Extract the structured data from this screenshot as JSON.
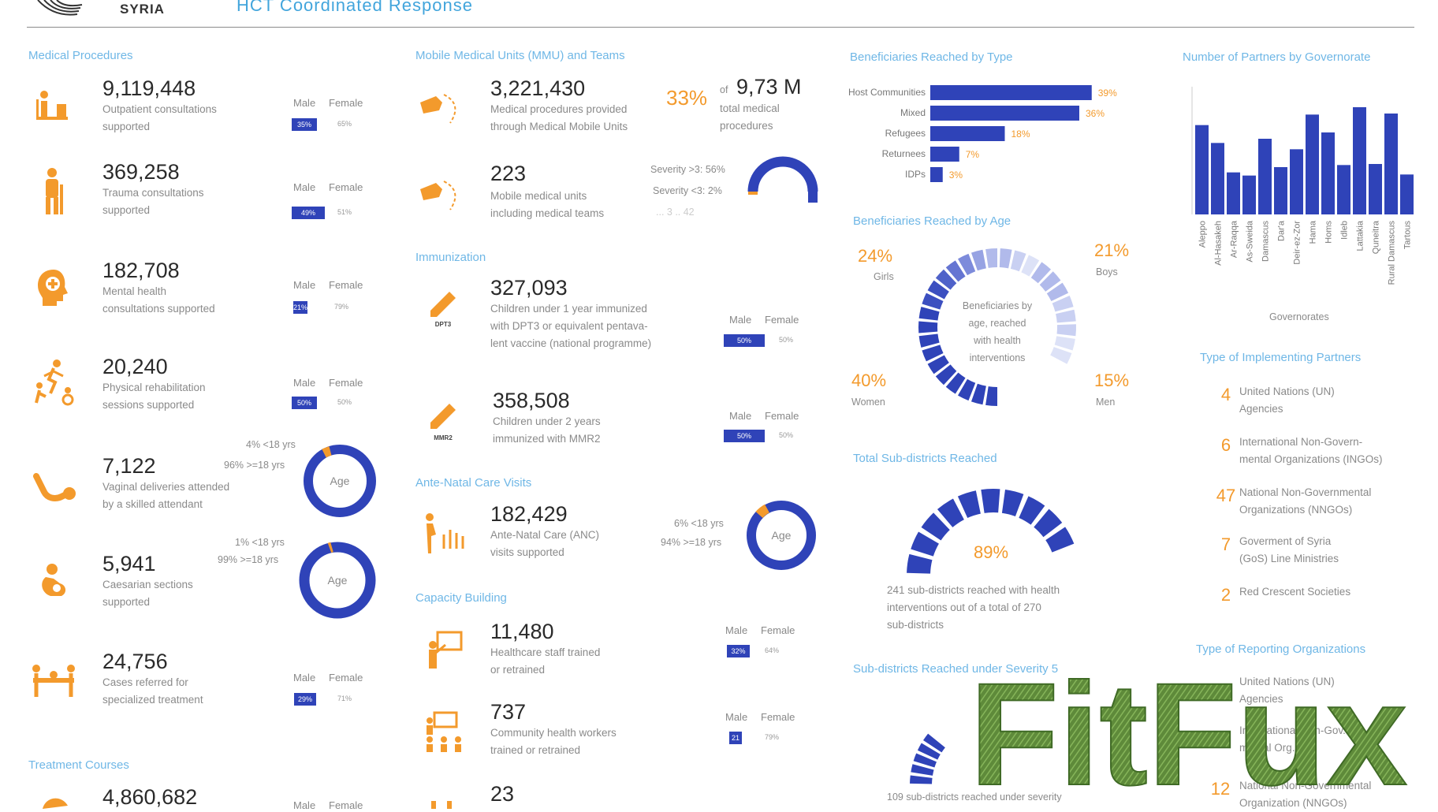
{
  "header": {
    "country": "SYRIA",
    "title": "HCT Coordinated Response"
  },
  "medical": {
    "title": "Medical Procedures",
    "male_label": "Male",
    "female_label": "Female",
    "items": [
      {
        "value": "9,119,448",
        "desc1": "Outpatient consultations",
        "desc2": "supported",
        "male": "35%",
        "female": "65%"
      },
      {
        "value": "369,258",
        "desc1": "Trauma consultations",
        "desc2": "supported",
        "male": "49%",
        "female": "51%"
      },
      {
        "value": "182,708",
        "desc1": "Mental health",
        "desc2": "consultations supported",
        "male": "21%",
        "female": "79%"
      },
      {
        "value": "20,240",
        "desc1": "Physical rehabilitation",
        "desc2": "sessions supported",
        "male": "50%",
        "female": "50%"
      },
      {
        "value": "7,122",
        "desc1": "Vaginal deliveries attended",
        "desc2": "by a skilled attendant",
        "under": "4% <18 yrs",
        "over": "96% >=18 yrs",
        "age": "Age"
      },
      {
        "value": "5,941",
        "desc1": "Caesarian sections",
        "desc2": "supported",
        "under": "1% <18 yrs",
        "over": "99% >=18 yrs",
        "age": "Age"
      },
      {
        "value": "24,756",
        "desc1": "Cases referred for",
        "desc2": "specialized treatment",
        "male": "29%",
        "female": "71%"
      }
    ],
    "treatment_title": "Treatment Courses",
    "treatment_value": "4,860,682",
    "treatment_male": "Male",
    "treatment_female": "Female"
  },
  "mmu": {
    "title": "Mobile Medical Units (MMU) and Teams",
    "value": "3,221,430",
    "desc1": "Medical procedures provided",
    "desc2": "through Medical Mobile Units",
    "pct": "33%",
    "of": "of",
    "total": "9,73 M",
    "total_desc1": "total medical",
    "total_desc2": "procedures",
    "units_value": "223",
    "units_desc1": "Mobile medical units",
    "units_desc2": "including medical teams",
    "sev1": "Severity >3: 56%",
    "sev2": "Severity <3: 2%",
    "sev3": "... 3 .. 42"
  },
  "immun": {
    "title": "Immunization",
    "male_label": "Male",
    "female_label": "Female",
    "items": [
      {
        "value": "327,093",
        "desc1": "Children under 1 year immunized",
        "desc2": "with DPT3 or equivalent pentava-",
        "desc3": "lent vaccine (national programme)",
        "icon": "DPT3",
        "male": "50%",
        "female": "50%"
      },
      {
        "value": "358,508",
        "desc1": "Children under 2 years",
        "desc2": "immunized with MMR2",
        "icon": "MMR2",
        "male": "50%",
        "female": "50%"
      }
    ]
  },
  "anc": {
    "title": "Ante-Natal Care Visits",
    "value": "182,429",
    "desc1": "Ante-Natal Care (ANC)",
    "desc2": "visits supported",
    "under": "6% <18 yrs",
    "over": "94% >=18 yrs",
    "age": "Age"
  },
  "capacity": {
    "title": "Capacity Building",
    "male_label": "Male",
    "female_label": "Female",
    "items": [
      {
        "value": "11,480",
        "desc1": "Healthcare staff trained",
        "desc2": "or retrained",
        "male": "32%",
        "female": "64%"
      },
      {
        "value": "737",
        "desc1": "Community health workers",
        "desc2": "trained or retrained",
        "male": "21",
        "female": "79%"
      },
      {
        "value": "23"
      }
    ]
  },
  "bene_type": {
    "title": "Beneficiaries Reached by Type",
    "chart_data": {
      "type": "bar",
      "orientation": "horizontal",
      "categories": [
        "Host Communities",
        "Mixed",
        "Refugees",
        "Returnees",
        "IDPs"
      ],
      "values": [
        39,
        36,
        18,
        7,
        3
      ],
      "labels": [
        "39%",
        "36%",
        "18%",
        "7%",
        "3%"
      ]
    }
  },
  "bene_age": {
    "title": "Beneficiaries Reached by Age",
    "girls_pct": "24%",
    "girls": "Girls",
    "boys_pct": "21%",
    "boys": "Boys",
    "women_pct": "40%",
    "women": "Women",
    "men_pct": "15%",
    "men": "Men",
    "center1": "Beneficiaries by",
    "center2": "age, reached",
    "center3": "with health",
    "center4": "interventions"
  },
  "subdistricts": {
    "title": "Total Sub-districts Reached",
    "pct": "89%",
    "desc1": "241 sub-districts reached with health",
    "desc2": "interventions out of a total of 270",
    "desc3": "sub-districts",
    "sev_title": "Sub-districts Reached under Severity 5",
    "sev_desc": "109 sub-districts reached under severity"
  },
  "partners_gov": {
    "title": "Number of Partners by Governorate",
    "xlabel": "Governorates",
    "chart_data": {
      "type": "bar",
      "categories": [
        "Aleppo",
        "Al-Hasakeh",
        "Ar-Raqqa",
        "As-Sweida",
        "Damascus",
        "Dar'a",
        "Deir-ez-Zor",
        "Hama",
        "Homs",
        "Idleb",
        "Lattakia",
        "Quneitra",
        "Rural Damascus",
        "Tartous"
      ],
      "values": [
        85,
        68,
        40,
        37,
        72,
        45,
        62,
        95,
        78,
        47,
        102,
        48,
        96,
        38
      ],
      "ylim": [
        0,
        120
      ]
    }
  },
  "impl_partners": {
    "title": "Type of Implementing Partners",
    "items": [
      {
        "num": "4",
        "l1": "United Nations (UN)",
        "l2": "Agencies"
      },
      {
        "num": "6",
        "l1": "International Non-Govern-",
        "l2": "mental Organizations (INGOs)"
      },
      {
        "num": "47",
        "l1": "National Non-Governmental",
        "l2": "Organizations (NNGOs)"
      },
      {
        "num": "7",
        "l1": "Goverment of Syria",
        "l2": "(GoS) Line Ministries"
      },
      {
        "num": "2",
        "l1": "Red Crescent Societies",
        "l2": ""
      }
    ]
  },
  "report_orgs": {
    "title": "Type of Reporting Organizations",
    "items": [
      {
        "num": "",
        "l1": "United Nations (UN)",
        "l2": "Agencies"
      },
      {
        "num": "",
        "l1": "International Non-Gov.",
        "l2": "mental Org."
      },
      {
        "num": "12",
        "l1": "National Non-Governmental",
        "l2": "Organization (NNGOs)"
      }
    ]
  },
  "watermark": {
    "text": "FitFux"
  },
  "colors": {
    "blue": "#2f43b8",
    "orange": "#f39a2c",
    "title_blue": "#6fb7e6"
  }
}
